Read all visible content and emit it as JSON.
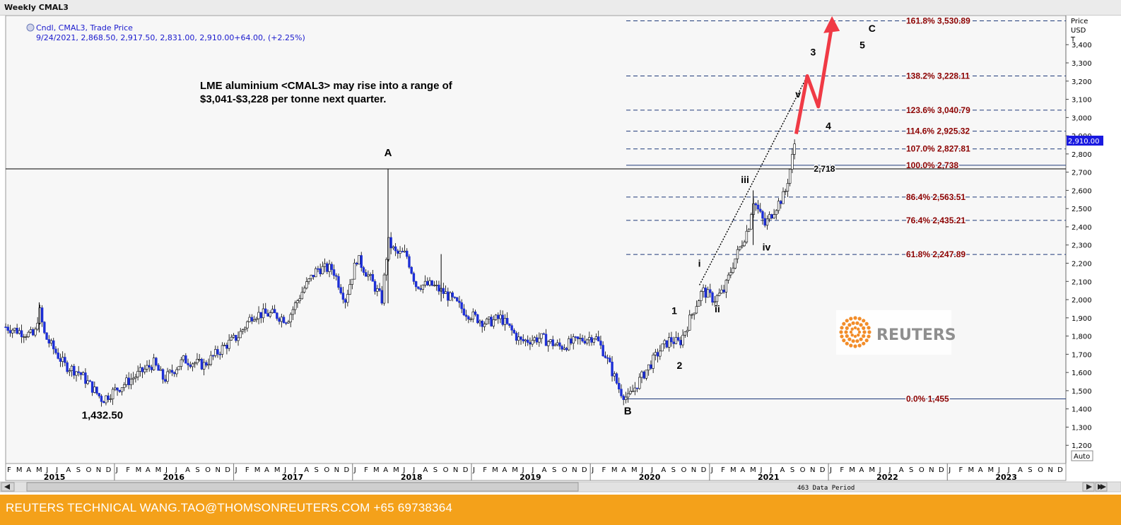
{
  "window": {
    "title": "Weekly CMAL3"
  },
  "legend": {
    "series_label": "Cndl, CMAL3, Trade Price",
    "ohlc_line": "9/24/2021, 2,868.50, 2,917.50, 2,831.00, 2,910.00+64.00, (+2.25%)"
  },
  "annotation": {
    "line1": "LME aluminium <CMAL3> may rise into a range of",
    "line2": "$3,041-$3,228 per tonne next quarter."
  },
  "axis": {
    "price_label": "Price",
    "currency_label": "USD",
    "unit_label": "T",
    "auto_label": "Auto",
    "data_period": "463 Data Period",
    "last_price_tag": "2,910.00"
  },
  "footer": {
    "text": "REUTERS TECHNICAL  WANG.TAO@THOMSONREUTERS.COM  +65 69738364"
  },
  "watermark": {
    "brand": "REUTERS"
  },
  "colors": {
    "up_candle": "#ffffff",
    "down_candle": "#1d2fd6",
    "fib_line": "#1f3a7a",
    "fib_label": "#8b0000",
    "arrow": "#f03a45",
    "footer": "#f4a11a",
    "price_tag": "#1a1ae0"
  },
  "chart_data": {
    "type": "candlestick",
    "title": "Weekly CMAL3",
    "ylabel": "Price USD T",
    "ylim": [
      1100,
      3560
    ],
    "y_ticks": [
      1200,
      1300,
      1400,
      1500,
      1600,
      1700,
      1800,
      1900,
      2000,
      2100,
      2200,
      2300,
      2400,
      2500,
      2600,
      2700,
      2800,
      2900,
      3000,
      3100,
      3200,
      3300,
      3400
    ],
    "y_tick_labels": [
      "1,200",
      "1,300",
      "1,400",
      "1,500",
      "1,600",
      "1,700",
      "1,800",
      "1,900",
      "2,000",
      "2,100",
      "2,200",
      "2,300",
      "2,400",
      "2,500",
      "2,600",
      "2,700",
      "2,800",
      "2,900",
      "3,000",
      "3,100",
      "3,200",
      "3,300",
      "3,400"
    ],
    "x_range": [
      "2015-02-01",
      "2023-12-31"
    ],
    "month_labels": [
      "F",
      "M",
      "A",
      "M",
      "J",
      "J",
      "A",
      "S",
      "O",
      "N",
      "D",
      "J",
      "F",
      "M",
      "A",
      "M",
      "J",
      "J",
      "A",
      "S",
      "O",
      "N",
      "D",
      "J",
      "F",
      "M",
      "A",
      "M",
      "J",
      "J",
      "A",
      "S",
      "O",
      "N",
      "D",
      "J",
      "F",
      "M",
      "A",
      "M",
      "J",
      "J",
      "A",
      "S",
      "O",
      "N",
      "D",
      "J",
      "F",
      "M",
      "A",
      "M",
      "J",
      "J",
      "A",
      "S",
      "O",
      "N",
      "D",
      "J",
      "F",
      "M",
      "A",
      "M",
      "J",
      "J",
      "A",
      "S",
      "O",
      "N",
      "D",
      "J",
      "F",
      "M",
      "A",
      "M",
      "J",
      "J",
      "A",
      "S",
      "O",
      "N",
      "D",
      "J",
      "F",
      "M",
      "A",
      "M",
      "J",
      "J",
      "A",
      "S",
      "O",
      "N",
      "D",
      "J",
      "F",
      "M",
      "A",
      "M",
      "J",
      "J",
      "A",
      "S",
      "O",
      "N",
      "D"
    ],
    "year_labels": [
      "2015",
      "2016",
      "2017",
      "2018",
      "2019",
      "2020",
      "2021",
      "2022",
      "2023"
    ],
    "anchors": [
      [
        "2015-02-01",
        1850
      ],
      [
        "2015-05-01",
        1800
      ],
      [
        "2015-05-15",
        1950
      ],
      [
        "2015-06-01",
        1800
      ],
      [
        "2015-08-01",
        1640
      ],
      [
        "2015-09-15",
        1600
      ],
      [
        "2015-11-25",
        1450
      ],
      [
        "2016-01-01",
        1500
      ],
      [
        "2016-05-01",
        1650
      ],
      [
        "2016-06-01",
        1560
      ],
      [
        "2016-08-01",
        1670
      ],
      [
        "2016-10-01",
        1640
      ],
      [
        "2016-12-01",
        1740
      ],
      [
        "2017-01-15",
        1800
      ],
      [
        "2017-03-01",
        1920
      ],
      [
        "2017-05-01",
        1920
      ],
      [
        "2017-06-15",
        1890
      ],
      [
        "2017-08-01",
        2050
      ],
      [
        "2017-09-15",
        2170
      ],
      [
        "2017-11-01",
        2170
      ],
      [
        "2017-12-10",
        2000
      ],
      [
        "2018-01-15",
        2230
      ],
      [
        "2018-03-01",
        2100
      ],
      [
        "2018-04-01",
        2000
      ],
      [
        "2018-04-20",
        2320
      ],
      [
        "2018-05-15",
        2250
      ],
      [
        "2018-06-15",
        2250
      ],
      [
        "2018-07-15",
        2080
      ],
      [
        "2018-09-01",
        2080
      ],
      [
        "2018-10-15",
        2030
      ],
      [
        "2018-12-15",
        1930
      ],
      [
        "2019-02-15",
        1870
      ],
      [
        "2019-04-01",
        1900
      ],
      [
        "2019-06-01",
        1770
      ],
      [
        "2019-08-01",
        1790
      ],
      [
        "2019-10-01",
        1740
      ],
      [
        "2019-11-15",
        1770
      ],
      [
        "2020-01-15",
        1800
      ],
      [
        "2020-02-15",
        1700
      ],
      [
        "2020-04-01",
        1500
      ],
      [
        "2020-04-25",
        1455
      ],
      [
        "2020-06-01",
        1560
      ],
      [
        "2020-08-01",
        1720
      ],
      [
        "2020-09-01",
        1780
      ],
      [
        "2020-10-01",
        1760
      ],
      [
        "2020-11-15",
        1950
      ],
      [
        "2020-12-10",
        2050
      ],
      [
        "2021-01-15",
        2000
      ],
      [
        "2021-02-15",
        2050
      ],
      [
        "2021-03-15",
        2200
      ],
      [
        "2021-05-01",
        2400
      ],
      [
        "2021-05-15",
        2550
      ],
      [
        "2021-06-20",
        2410
      ],
      [
        "2021-07-20",
        2500
      ],
      [
        "2021-08-20",
        2580
      ],
      [
        "2021-09-10",
        2760
      ],
      [
        "2021-09-24",
        2910
      ]
    ],
    "spikes": [
      [
        "2015-05-15",
        1985,
        1820
      ],
      [
        "2018-04-20",
        2718,
        1980
      ],
      [
        "2018-09-30",
        2250,
        1990
      ],
      [
        "2021-05-15",
        2600,
        2300
      ]
    ],
    "pivot_points": [
      {
        "label": "A",
        "x": "2018-04-20",
        "y": 2718
      },
      {
        "label": "B",
        "x": "2020-04-25",
        "y": 1455
      },
      {
        "label": "1,432.50",
        "x": "2015-11-25",
        "y": 1432.5
      },
      {
        "label": "2,718",
        "x": "2021-09-24",
        "y": 2718
      }
    ],
    "wave_labels": [
      {
        "label": "1",
        "x": "2020-09-15",
        "y": 1920
      },
      {
        "label": "2",
        "x": "2020-10-01",
        "y": 1620
      },
      {
        "label": "i",
        "x": "2020-12-01",
        "y": 2180
      },
      {
        "label": "ii",
        "x": "2021-01-25",
        "y": 1930
      },
      {
        "label": "iii",
        "x": "2021-04-20",
        "y": 2640
      },
      {
        "label": "iv",
        "x": "2021-06-25",
        "y": 2270
      },
      {
        "label": "v",
        "x": "2021-09-30",
        "y": 3110
      },
      {
        "label": "3",
        "x": "2021-11-15",
        "y": 3340
      },
      {
        "label": "4",
        "x": "2022-01-01",
        "y": 2935
      },
      {
        "label": "5",
        "x": "2022-04-15",
        "y": 3380
      },
      {
        "label": "C",
        "x": "2022-05-15",
        "y": 3470
      }
    ],
    "fib_levels": [
      {
        "label": "161.8% 3,530.89",
        "y": 3530.89
      },
      {
        "label": "138.2% 3,228.11",
        "y": 3228.11
      },
      {
        "label": "123.6% 3,040.79",
        "y": 3040.79
      },
      {
        "label": "114.6% 2,925.32",
        "y": 2925.32
      },
      {
        "label": "107.0% 2,827.81",
        "y": 2827.81
      },
      {
        "label": "100.0% 2,738",
        "y": 2738
      },
      {
        "label": "86.4% 2,563.51",
        "y": 2563.51
      },
      {
        "label": "76.4% 2,435.21",
        "y": 2435.21
      },
      {
        "label": "61.8% 2,247.89",
        "y": 2247.89
      },
      {
        "label": "0.0% 1,455",
        "y": 1455
      }
    ],
    "projection_path": [
      [
        "2021-09-24",
        2910
      ],
      [
        "2021-10-28",
        3228
      ],
      [
        "2021-12-01",
        3060
      ],
      [
        "2022-01-12",
        3510
      ]
    ],
    "trendline": [
      [
        "2020-12-01",
        2080
      ],
      [
        "2021-05-01",
        2600
      ],
      [
        "2021-10-28",
        3228
      ]
    ]
  }
}
